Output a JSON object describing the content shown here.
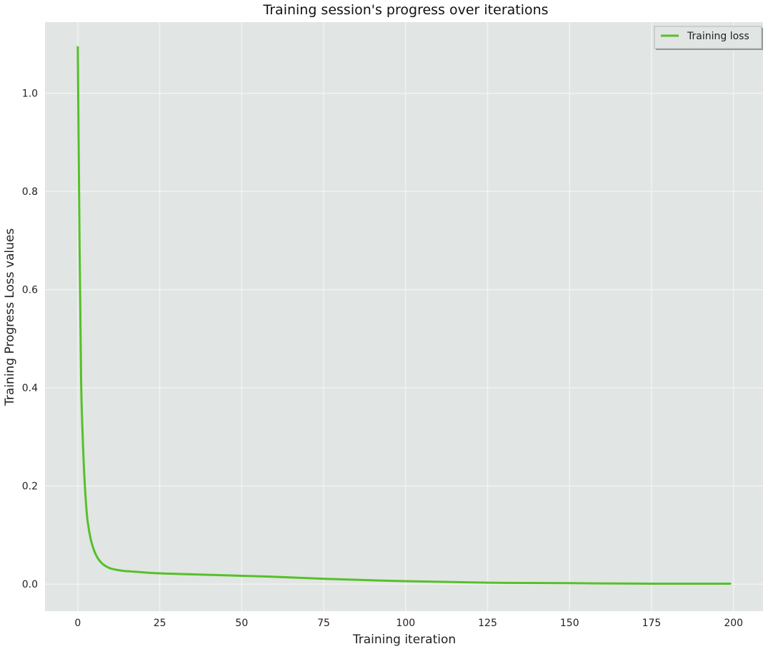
{
  "chart_data": {
    "type": "line",
    "title": "Training session's progress over iterations",
    "xlabel": "Training iteration",
    "ylabel": "Training Progress Loss values",
    "xlim": [
      -10,
      209
    ],
    "ylim": [
      -0.055,
      1.145
    ],
    "xticks": [
      0,
      25,
      50,
      75,
      100,
      125,
      150,
      175,
      200
    ],
    "yticks": [
      0.0,
      0.2,
      0.4,
      0.6,
      0.8,
      1.0
    ],
    "xtick_labels": [
      "0",
      "25",
      "50",
      "75",
      "100",
      "125",
      "150",
      "175",
      "200"
    ],
    "ytick_labels": [
      "0.0",
      "0.2",
      "0.4",
      "0.6",
      "0.8",
      "1.0"
    ],
    "grid": true,
    "legend_position": "top-right",
    "series": [
      {
        "name": "Training loss",
        "color": "#55c02a",
        "x": [
          0,
          0.5,
          1,
          1.5,
          2,
          2.5,
          3,
          4,
          5,
          6,
          7,
          8,
          9,
          10,
          12,
          14,
          16,
          20,
          25,
          30,
          40,
          50,
          60,
          75,
          100,
          125,
          150,
          175,
          199
        ],
        "y": [
          1.094,
          0.72,
          0.42,
          0.3,
          0.22,
          0.165,
          0.128,
          0.09,
          0.068,
          0.054,
          0.045,
          0.039,
          0.035,
          0.032,
          0.029,
          0.027,
          0.026,
          0.024,
          0.022,
          0.021,
          0.019,
          0.017,
          0.015,
          0.011,
          0.006,
          0.003,
          0.002,
          0.001,
          0.001
        ]
      }
    ]
  },
  "colors": {
    "plot_background": "#e1e5e3",
    "grid": "#f3f5f4",
    "line": "#55c02a",
    "legend_background": "#e1e5e3",
    "legend_border": "#b4b8b6"
  }
}
